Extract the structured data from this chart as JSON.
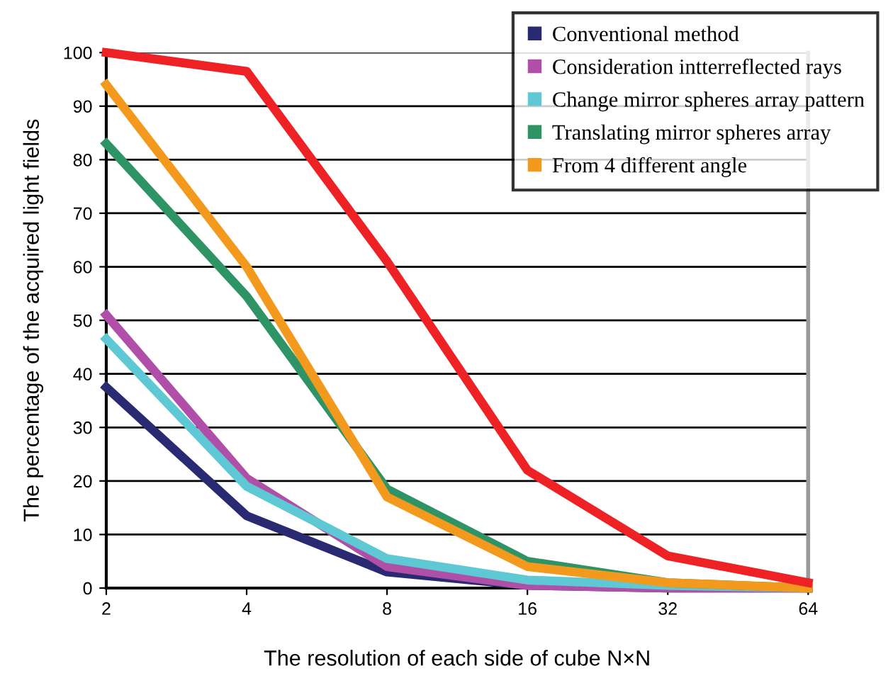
{
  "chart_data": {
    "type": "line",
    "xlabel": "The resolution of each side of cube N×N",
    "ylabel": "The percentage of the acquired light fields",
    "categories": [
      "2",
      "4",
      "8",
      "16",
      "32",
      "64"
    ],
    "ylim": [
      0,
      100
    ],
    "yticks": [
      0,
      10,
      20,
      30,
      40,
      50,
      60,
      70,
      80,
      90,
      100
    ],
    "grid": "y",
    "legend": "top right",
    "marker": "none",
    "line_style": "solid",
    "series": [
      {
        "name": "Conventional method",
        "color": "#2a2a72",
        "values": [
          37.5,
          13.5,
          3,
          0.5,
          0,
          0
        ]
      },
      {
        "name": "Consideration intterreflected rays",
        "color": "#b04fa8",
        "values": [
          51,
          20.5,
          4,
          0.5,
          0,
          0
        ]
      },
      {
        "name": "Change mirror spheres array pattern",
        "color": "#5ec8d4",
        "values": [
          46.5,
          19,
          5.5,
          1.5,
          0.5,
          0
        ]
      },
      {
        "name": "Translating mirror spheres array",
        "color": "#2e9466",
        "values": [
          83,
          54.5,
          18.5,
          5,
          1,
          0
        ]
      },
      {
        "name": "From 4 different angle",
        "color": "#f39a1e",
        "values": [
          94,
          60,
          17,
          4,
          1,
          0
        ]
      },
      {
        "color": "#ee2224",
        "values": [
          100,
          96.5,
          61,
          22,
          6,
          1
        ]
      }
    ]
  }
}
